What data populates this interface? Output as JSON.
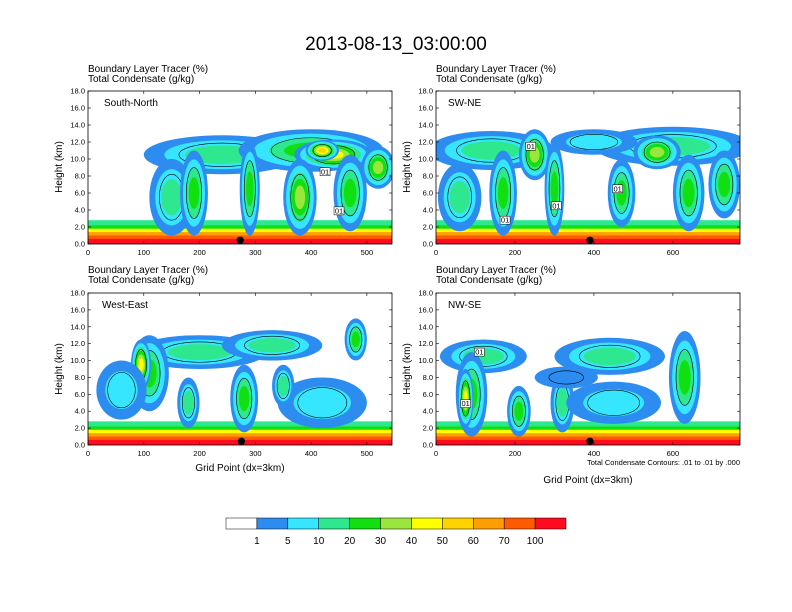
{
  "chart_data": {
    "type": "heatmap",
    "title": "2013-08-13_03:00:00",
    "colors": {
      "levels": [
        "#ffffff",
        "#2d8cf0",
        "#36e6ff",
        "#2ee88f",
        "#10e010",
        "#9ae63c",
        "#ffff00",
        "#ffd200",
        "#ff9e00",
        "#ff5a00",
        "#ff0a1e"
      ],
      "contour": "#000000",
      "frame": "#000000"
    },
    "colorbar": {
      "labels": [
        "1",
        "5",
        "10",
        "20",
        "30",
        "40",
        "50",
        "60",
        "70",
        "100"
      ]
    },
    "contour_note": "Total Condensate Contours: .01 to .01 by .000",
    "panels": [
      {
        "id": "south-north",
        "name": "South-North",
        "left_title_1": "Boundary Layer Tracer   (%)",
        "left_title_2": "Total Condensate   (g/kg)",
        "ylabel": "Height (km)",
        "xlabel": "",
        "ylim": [
          0,
          18
        ],
        "yticks": [
          "0.0",
          "2.0",
          "4.0",
          "6.0",
          "8.0",
          "10.0",
          "12.0",
          "14.0",
          "16.0",
          "18.0"
        ],
        "xlim": [
          0,
          545
        ],
        "xticks": [
          0,
          100,
          200,
          300,
          400,
          500
        ],
        "marker_x": 273,
        "contour_labels": [
          {
            "text": "01",
            "x": 425,
            "y": 8.5
          },
          {
            "text": "01",
            "x": 450,
            "y": 3.9
          }
        ],
        "features": [
          {
            "type": "bl",
            "x0": 0,
            "x1": 545,
            "top": 1.1
          },
          {
            "type": "cloud",
            "x": 240,
            "y": 10.5,
            "rx": 140,
            "ry": 2.3,
            "level": 3
          },
          {
            "type": "cloud",
            "x": 400,
            "y": 11.0,
            "rx": 130,
            "ry": 2.5,
            "level": 4
          },
          {
            "type": "cloud",
            "x": 440,
            "y": 10.5,
            "rx": 70,
            "ry": 1.8,
            "level": 6
          },
          {
            "type": "cloud",
            "x": 420,
            "y": 11.0,
            "rx": 30,
            "ry": 1.2,
            "level": 7
          },
          {
            "type": "cloud",
            "x": 150,
            "y": 5.5,
            "rx": 40,
            "ry": 4.5,
            "level": 3
          },
          {
            "type": "cloud",
            "x": 190,
            "y": 6.0,
            "rx": 25,
            "ry": 5.0,
            "level": 4
          },
          {
            "type": "cloud",
            "x": 290,
            "y": 6.5,
            "rx": 18,
            "ry": 5.5,
            "level": 4
          },
          {
            "type": "cloud",
            "x": 380,
            "y": 5.5,
            "rx": 30,
            "ry": 4.5,
            "level": 5
          },
          {
            "type": "cloud",
            "x": 470,
            "y": 6.0,
            "rx": 30,
            "ry": 4.5,
            "level": 4
          },
          {
            "type": "cloud",
            "x": 520,
            "y": 9.0,
            "rx": 30,
            "ry": 2.5,
            "level": 5
          }
        ]
      },
      {
        "id": "sw-ne",
        "name": "SW-NE",
        "left_title_1": "Boundary Layer Tracer   (%)",
        "left_title_2": "Total Condensate   (g/kg)",
        "ylabel": "Height (km)",
        "xlabel": "",
        "ylim": [
          0,
          18
        ],
        "yticks": [
          "0.0",
          "2.0",
          "4.0",
          "6.0",
          "8.0",
          "10.0",
          "12.0",
          "14.0",
          "16.0",
          "18.0"
        ],
        "xlim": [
          0,
          770
        ],
        "xticks": [
          0,
          200,
          400,
          600
        ],
        "marker_x": 390,
        "contour_labels": [
          {
            "text": "01",
            "x": 240,
            "y": 11.5
          },
          {
            "text": "01",
            "x": 305,
            "y": 4.5
          },
          {
            "text": "01",
            "x": 460,
            "y": 6.5
          },
          {
            "text": "01",
            "x": 175,
            "y": 2.8
          }
        ],
        "features": [
          {
            "type": "bl",
            "x0": 0,
            "x1": 770,
            "top": 1.1
          },
          {
            "type": "cloud",
            "x": 140,
            "y": 11.0,
            "rx": 160,
            "ry": 2.3,
            "level": 3
          },
          {
            "type": "cloud",
            "x": 600,
            "y": 11.5,
            "rx": 200,
            "ry": 2.3,
            "level": 3
          },
          {
            "type": "cloud",
            "x": 400,
            "y": 12.0,
            "rx": 110,
            "ry": 1.5,
            "level": 2
          },
          {
            "type": "cloud",
            "x": 250,
            "y": 10.5,
            "rx": 40,
            "ry": 3.0,
            "level": 5
          },
          {
            "type": "cloud",
            "x": 560,
            "y": 10.8,
            "rx": 60,
            "ry": 2.0,
            "level": 5
          },
          {
            "type": "cloud",
            "x": 60,
            "y": 5.5,
            "rx": 55,
            "ry": 4.0,
            "level": 3
          },
          {
            "type": "cloud",
            "x": 170,
            "y": 6.0,
            "rx": 35,
            "ry": 5.0,
            "level": 4
          },
          {
            "type": "cloud",
            "x": 300,
            "y": 6.5,
            "rx": 25,
            "ry": 5.5,
            "level": 4
          },
          {
            "type": "cloud",
            "x": 470,
            "y": 6.0,
            "rx": 35,
            "ry": 4.0,
            "level": 4
          },
          {
            "type": "cloud",
            "x": 640,
            "y": 6.0,
            "rx": 40,
            "ry": 4.5,
            "level": 4
          },
          {
            "type": "cloud",
            "x": 730,
            "y": 7.0,
            "rx": 40,
            "ry": 4.0,
            "level": 4
          }
        ]
      },
      {
        "id": "west-east",
        "name": "West-East",
        "left_title_1": "Boundary Layer Tracer   (%)",
        "left_title_2": "Total Condensate   (g/kg)",
        "ylabel": "Height (km)",
        "xlabel": "Grid Point (dx=3km)",
        "ylim": [
          0,
          18
        ],
        "yticks": [
          "0.0",
          "2.0",
          "4.0",
          "6.0",
          "8.0",
          "10.0",
          "12.0",
          "14.0",
          "16.0",
          "18.0"
        ],
        "xlim": [
          0,
          545
        ],
        "xticks": [
          0,
          100,
          200,
          300,
          400,
          500
        ],
        "marker_x": 275,
        "contour_labels": [],
        "features": [
          {
            "type": "bl",
            "x0": 0,
            "x1": 545,
            "top": 1.1
          },
          {
            "type": "cloud",
            "x": 200,
            "y": 11.0,
            "rx": 120,
            "ry": 2.0,
            "level": 3
          },
          {
            "type": "cloud",
            "x": 330,
            "y": 11.8,
            "rx": 90,
            "ry": 1.8,
            "level": 3
          },
          {
            "type": "cloud",
            "x": 110,
            "y": 8.5,
            "rx": 35,
            "ry": 4.5,
            "level": 4
          },
          {
            "type": "cloud",
            "x": 95,
            "y": 9.5,
            "rx": 18,
            "ry": 3.0,
            "level": 6
          },
          {
            "type": "cloud",
            "x": 60,
            "y": 6.5,
            "rx": 45,
            "ry": 3.5,
            "level": 2
          },
          {
            "type": "cloud",
            "x": 180,
            "y": 5.0,
            "rx": 20,
            "ry": 3.0,
            "level": 3
          },
          {
            "type": "cloud",
            "x": 280,
            "y": 5.5,
            "rx": 25,
            "ry": 4.0,
            "level": 4
          },
          {
            "type": "cloud",
            "x": 420,
            "y": 5.0,
            "rx": 80,
            "ry": 3.0,
            "level": 2
          },
          {
            "type": "cloud",
            "x": 480,
            "y": 12.5,
            "rx": 20,
            "ry": 2.5,
            "level": 4
          },
          {
            "type": "cloud",
            "x": 350,
            "y": 7.0,
            "rx": 20,
            "ry": 2.5,
            "level": 3
          }
        ]
      },
      {
        "id": "nw-se",
        "name": "NW-SE",
        "left_title_1": "Boundary Layer Tracer   (%)",
        "left_title_2": "Total Condensate   (g/kg)",
        "ylabel": "Height (km)",
        "xlabel": "Grid Point (dx=3km)",
        "ylim": [
          0,
          18
        ],
        "yticks": [
          "0.0",
          "2.0",
          "4.0",
          "6.0",
          "8.0",
          "10.0",
          "12.0",
          "14.0",
          "16.0",
          "18.0"
        ],
        "xlim": [
          0,
          770
        ],
        "xticks": [
          0,
          200,
          400,
          600
        ],
        "marker_x": 390,
        "contour_labels": [
          {
            "text": "01",
            "x": 75,
            "y": 4.9
          },
          {
            "text": "01",
            "x": 110,
            "y": 11.0
          }
        ],
        "features": [
          {
            "type": "bl",
            "x0": 0,
            "x1": 770,
            "top": 1.1
          },
          {
            "type": "cloud",
            "x": 120,
            "y": 10.5,
            "rx": 110,
            "ry": 2.0,
            "level": 3
          },
          {
            "type": "cloud",
            "x": 440,
            "y": 10.5,
            "rx": 140,
            "ry": 2.2,
            "level": 3
          },
          {
            "type": "cloud",
            "x": 90,
            "y": 6.0,
            "rx": 40,
            "ry": 5.0,
            "level": 4
          },
          {
            "type": "cloud",
            "x": 75,
            "y": 5.5,
            "rx": 20,
            "ry": 3.5,
            "level": 6
          },
          {
            "type": "cloud",
            "x": 210,
            "y": 4.0,
            "rx": 30,
            "ry": 3.0,
            "level": 4
          },
          {
            "type": "cloud",
            "x": 320,
            "y": 5.0,
            "rx": 30,
            "ry": 3.5,
            "level": 3
          },
          {
            "type": "cloud",
            "x": 450,
            "y": 5.0,
            "rx": 120,
            "ry": 2.5,
            "level": 2
          },
          {
            "type": "cloud",
            "x": 630,
            "y": 8.0,
            "rx": 40,
            "ry": 5.5,
            "level": 4
          },
          {
            "type": "cloud",
            "x": 330,
            "y": 8.0,
            "rx": 80,
            "ry": 1.3,
            "level": 1
          }
        ]
      }
    ]
  }
}
